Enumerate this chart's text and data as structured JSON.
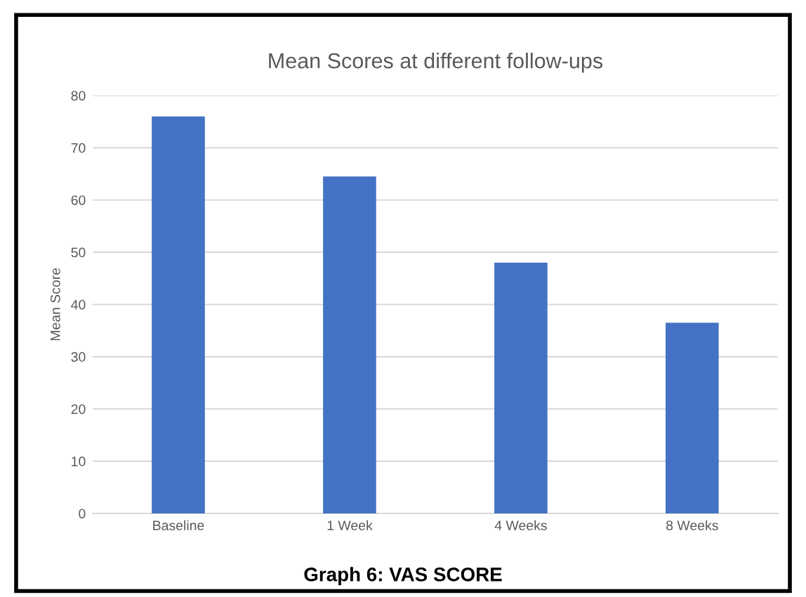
{
  "chart_data": {
    "type": "bar",
    "title": "Mean Scores at different follow-ups",
    "ylabel": "Mean Score",
    "categories": [
      "Baseline",
      "1 Week",
      "4 Weeks",
      "8 Weeks"
    ],
    "values": [
      76,
      64.5,
      48,
      36.5
    ],
    "color": "#4472c4",
    "ylim": [
      0,
      80
    ],
    "yticks": [
      0,
      10,
      20,
      30,
      40,
      50,
      60,
      70,
      80
    ],
    "grid": "y",
    "annotations": [
      "Graph 6: VAS SCORE"
    ]
  }
}
